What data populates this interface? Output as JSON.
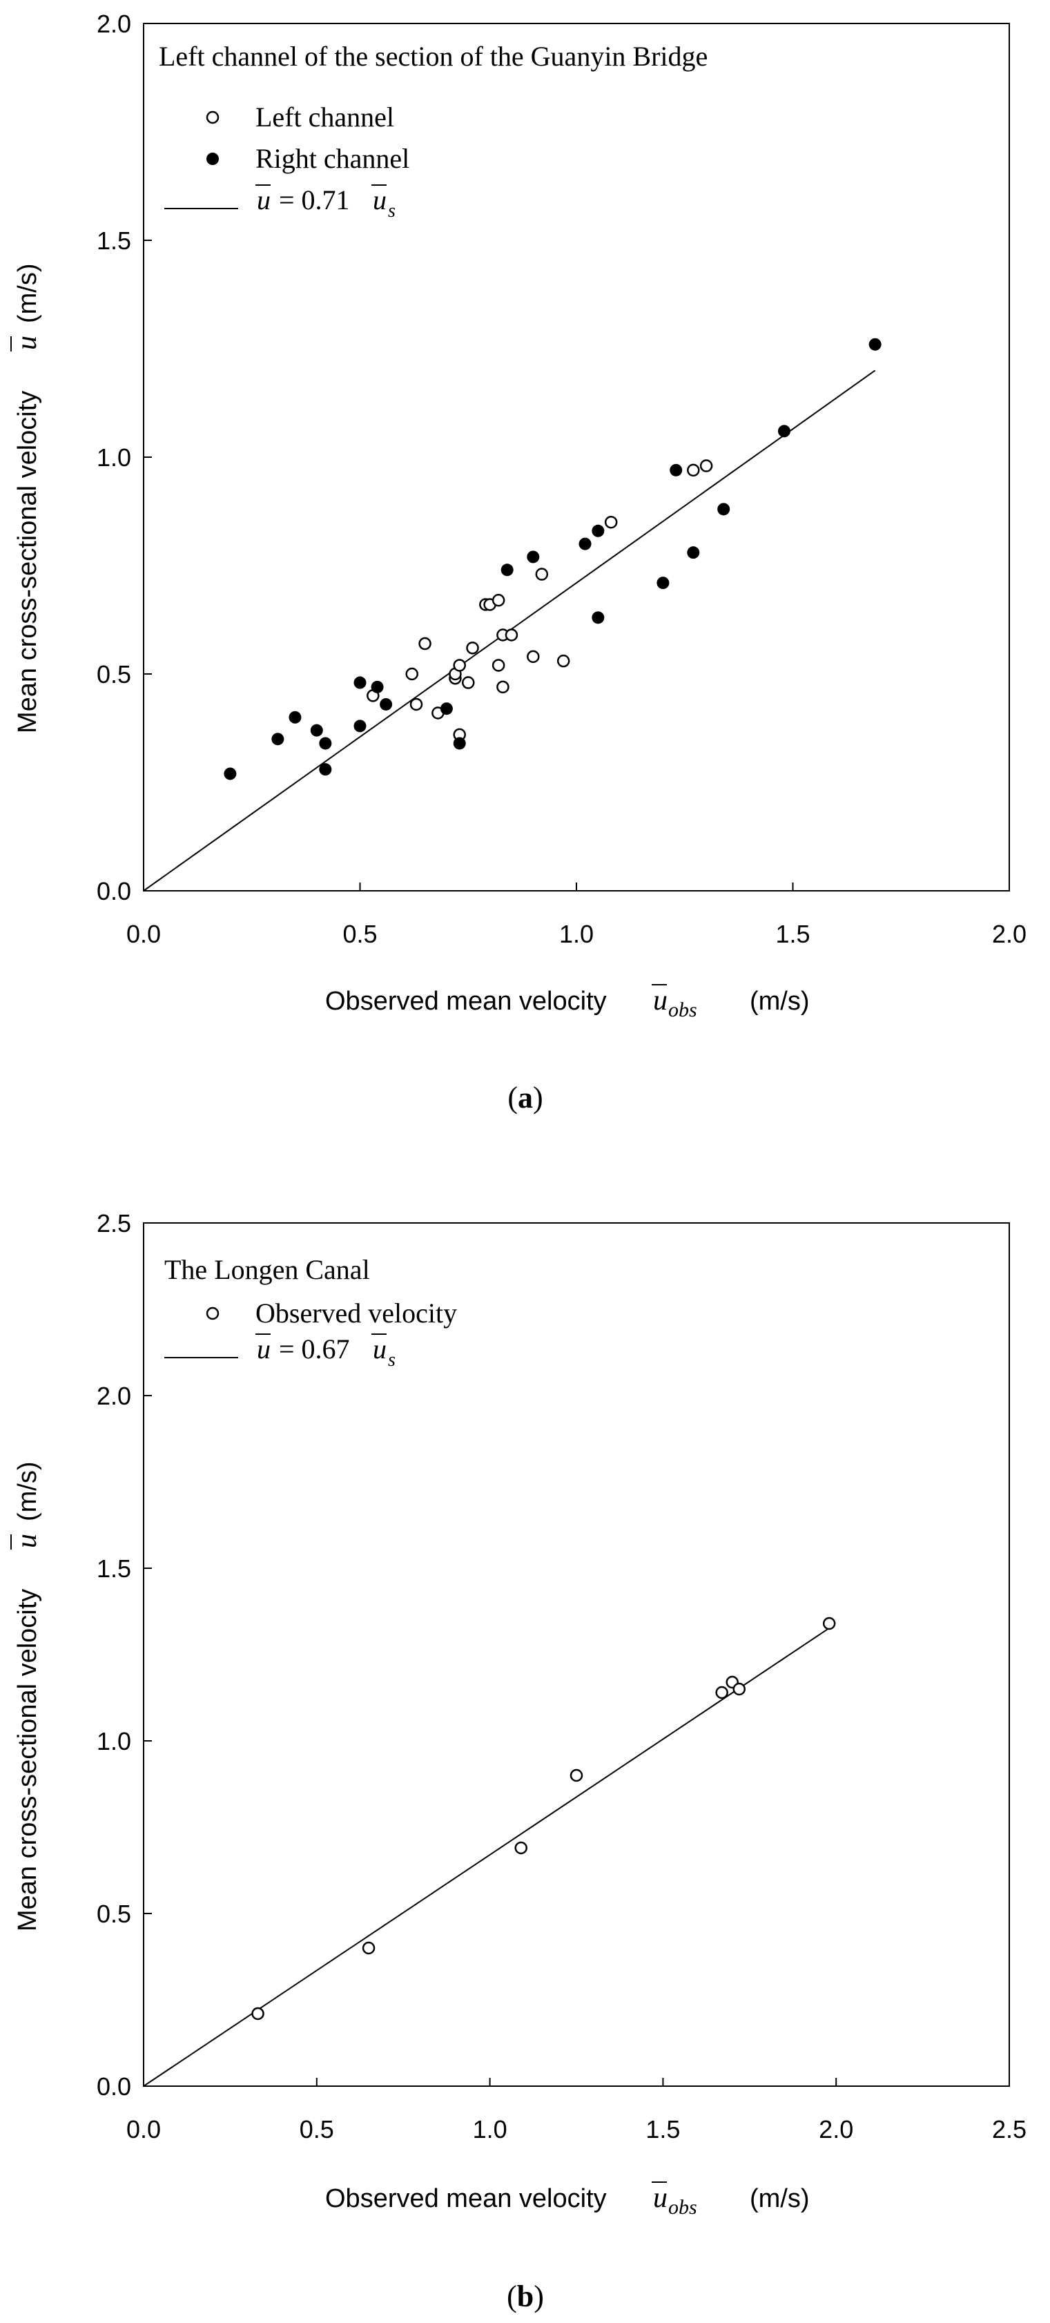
{
  "chart_data": [
    {
      "type": "scatter",
      "panel_label": "(a)",
      "panel_letter": "a",
      "title": "Left channel of the section of the Guanyin Bridge",
      "xlabel": "Observed mean velocity",
      "xlabel_symbol": "u",
      "xlabel_sub": "obs",
      "xlabel_unit": "(m/s)",
      "ylabel": "Mean cross-sectional velocity",
      "ylabel_symbol": "u",
      "ylabel_unit": "(m/s)",
      "xlim": [
        0,
        2.0
      ],
      "ylim": [
        0,
        2.0
      ],
      "xticks": [
        "0.0",
        "0.5",
        "1.0",
        "1.5",
        "2.0"
      ],
      "yticks": [
        "0.0",
        "0.5",
        "1.0",
        "1.5",
        "2.0"
      ],
      "legend": [
        {
          "label": "Left channel",
          "marker": "open-circle"
        },
        {
          "label": "Right channel",
          "marker": "filled-circle"
        },
        {
          "label": "u = 0.71 u_s",
          "marker": "line",
          "eq_lhs": "u",
          "eq_mid": "= 0.71",
          "eq_rhs": "u",
          "eq_sub": "s"
        }
      ],
      "fit_line": {
        "slope": 0.71,
        "x_range": [
          0,
          1.69
        ]
      },
      "series": [
        {
          "name": "Left channel",
          "marker": "open",
          "x": [
            0.53,
            0.62,
            0.63,
            0.65,
            0.68,
            0.72,
            0.72,
            0.73,
            0.73,
            0.75,
            0.76,
            0.79,
            0.8,
            0.82,
            0.82,
            0.83,
            0.83,
            0.85,
            0.9,
            0.92,
            0.97,
            1.08,
            1.27,
            1.3
          ],
          "y": [
            0.45,
            0.5,
            0.43,
            0.57,
            0.41,
            0.49,
            0.5,
            0.52,
            0.36,
            0.48,
            0.56,
            0.66,
            0.66,
            0.52,
            0.67,
            0.59,
            0.47,
            0.59,
            0.54,
            0.73,
            0.53,
            0.85,
            0.97,
            0.98
          ]
        },
        {
          "name": "Right channel",
          "marker": "filled",
          "x": [
            0.2,
            0.31,
            0.35,
            0.4,
            0.42,
            0.42,
            0.5,
            0.5,
            0.54,
            0.56,
            0.7,
            0.73,
            0.84,
            0.9,
            1.02,
            1.05,
            1.05,
            1.2,
            1.23,
            1.27,
            1.34,
            1.48,
            1.69
          ],
          "y": [
            0.27,
            0.35,
            0.4,
            0.37,
            0.34,
            0.28,
            0.48,
            0.38,
            0.47,
            0.43,
            0.42,
            0.34,
            0.74,
            0.77,
            0.8,
            0.83,
            0.63,
            0.71,
            0.97,
            0.78,
            0.88,
            1.06,
            1.26
          ]
        }
      ]
    },
    {
      "type": "scatter",
      "panel_label": "(b)",
      "panel_letter": "b",
      "title": "The Longen Canal",
      "xlabel": "Observed mean velocity",
      "xlabel_symbol": "u",
      "xlabel_sub": "obs",
      "xlabel_unit": "(m/s)",
      "ylabel": "Mean cross-sectional velocity",
      "ylabel_symbol": "u",
      "ylabel_unit": "(m/s)",
      "xlim": [
        0,
        2.5
      ],
      "ylim": [
        0,
        2.5
      ],
      "xticks": [
        "0.0",
        "0.5",
        "1.0",
        "1.5",
        "2.0",
        "2.5"
      ],
      "yticks": [
        "0.0",
        "0.5",
        "1.0",
        "1.5",
        "2.0",
        "2.5"
      ],
      "legend": [
        {
          "label": "Observed velocity",
          "marker": "open-circle"
        },
        {
          "label": "u = 0.67 u_s",
          "marker": "line",
          "eq_lhs": "u",
          "eq_mid": "= 0.67",
          "eq_rhs": "u",
          "eq_sub": "s"
        }
      ],
      "fit_line": {
        "slope": 0.67,
        "x_range": [
          0,
          1.98
        ]
      },
      "series": [
        {
          "name": "Observed velocity",
          "marker": "open",
          "x": [
            0.33,
            0.65,
            1.09,
            1.25,
            1.67,
            1.7,
            1.72,
            1.98
          ],
          "y": [
            0.21,
            0.4,
            0.69,
            0.9,
            1.14,
            1.17,
            1.15,
            1.34
          ]
        }
      ]
    }
  ]
}
